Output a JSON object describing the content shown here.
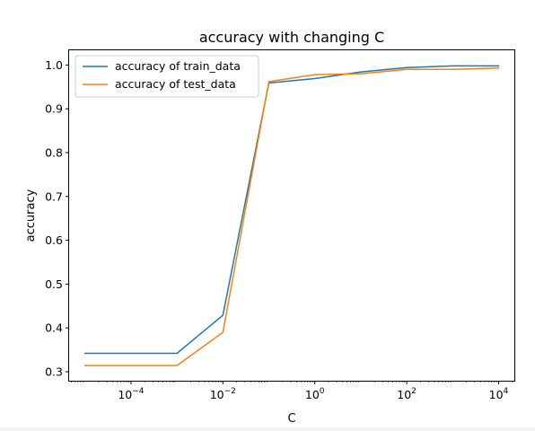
{
  "chart_data": {
    "type": "line",
    "title": "accuracy with changing C",
    "xlabel": "C",
    "ylabel": "accuracy",
    "xscale": "log",
    "xlim": [
      4.5e-06,
      22000
    ],
    "ylim": [
      0.2795,
      1.0335
    ],
    "x": [
      1e-05,
      0.0001,
      0.001,
      0.01,
      0.1,
      1,
      10,
      100,
      1000,
      10000
    ],
    "xticks": [
      {
        "value": 0.0001,
        "base": "10",
        "exp": "−4"
      },
      {
        "value": 0.01,
        "base": "10",
        "exp": "−2"
      },
      {
        "value": 1,
        "base": "10",
        "exp": "0"
      },
      {
        "value": 100,
        "base": "10",
        "exp": "2"
      },
      {
        "value": 10000,
        "base": "10",
        "exp": "4"
      }
    ],
    "yticks": [
      {
        "value": 0.3,
        "label": "0.3"
      },
      {
        "value": 0.4,
        "label": "0.4"
      },
      {
        "value": 0.5,
        "label": "0.5"
      },
      {
        "value": 0.6,
        "label": "0.6"
      },
      {
        "value": 0.7,
        "label": "0.7"
      },
      {
        "value": 0.8,
        "label": "0.8"
      },
      {
        "value": 0.9,
        "label": "0.9"
      },
      {
        "value": 1.0,
        "label": "1.0"
      }
    ],
    "grid": false,
    "legend_position": "top-left",
    "series": [
      {
        "name": "accuracy of train_data",
        "color": "#1f77b4",
        "values": [
          0.342,
          0.342,
          0.342,
          0.429,
          0.959,
          0.969,
          0.984,
          0.994,
          0.998,
          0.998
        ]
      },
      {
        "name": "accuracy of test_data",
        "color": "#ff7f0e",
        "values": [
          0.314,
          0.314,
          0.314,
          0.39,
          0.962,
          0.978,
          0.98,
          0.99,
          0.99,
          0.993
        ]
      }
    ]
  }
}
